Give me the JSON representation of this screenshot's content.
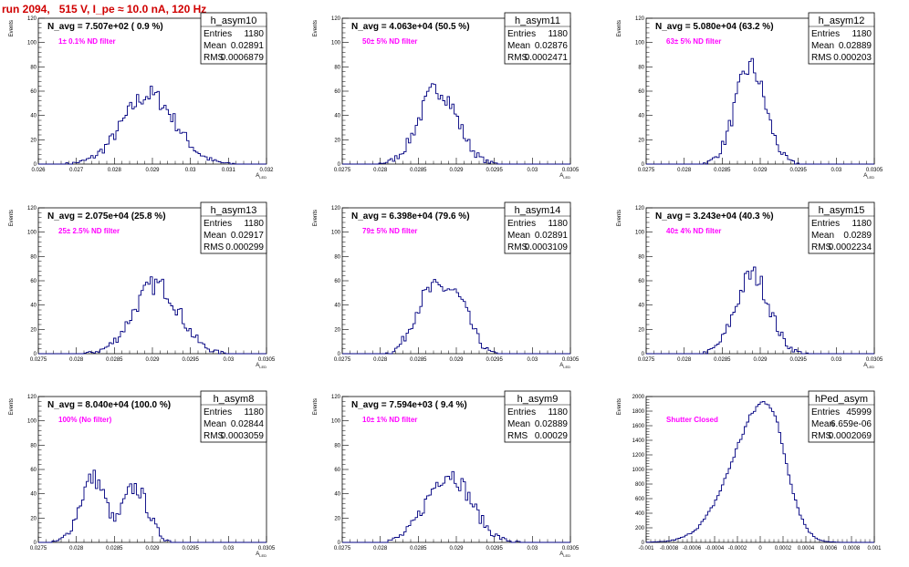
{
  "title": "run 2094,   515 V, I_pe ≈ 10.0 nA, 120 Hz",
  "colors": {
    "title": "#d00000",
    "hist": "#000080",
    "filter_note": "#ff00ff"
  },
  "chart_data": [
    {
      "type": "histogram",
      "name": "h_asym10",
      "entries": "1180",
      "mean": "0.02891",
      "rms": "0.0006879",
      "annotation": "N_avg = 7.507e+02 ( 0.9 %)",
      "filter": "1± 0.1% ND filter",
      "ylabel": "Events",
      "xlabel": "A_LED",
      "xlim": [
        0.026,
        0.032
      ],
      "ylim": [
        0,
        120
      ],
      "xticks": [
        "0.026",
        "0.027",
        "0.028",
        "0.029",
        "0.03",
        "0.031",
        "0.032"
      ],
      "yticks": [
        "0",
        "20",
        "40",
        "60",
        "80",
        "100",
        "120"
      ],
      "peak_x": 0.02891,
      "peak_y": 57,
      "width": 0.00069,
      "shape": "wide"
    },
    {
      "type": "histogram",
      "name": "h_asym11",
      "entries": "1180",
      "mean": "0.02876",
      "rms": "0.0002471",
      "annotation": "N_avg = 4.063e+04 (50.5 %)",
      "filter": "50± 5% ND filter",
      "ylabel": "Events",
      "xlabel": "A_LED",
      "xlim": [
        0.0275,
        0.0305
      ],
      "ylim": [
        0,
        120
      ],
      "xticks": [
        "0.0275",
        "0.028",
        "0.0285",
        "0.029",
        "0.0295",
        "0.03",
        "0.0305"
      ],
      "yticks": [
        "0",
        "20",
        "40",
        "60",
        "80",
        "100",
        "120"
      ],
      "peak_x": 0.02876,
      "peak_y": 62,
      "width": 0.00025,
      "shape": "normal"
    },
    {
      "type": "histogram",
      "name": "h_asym12",
      "entries": "1180",
      "mean": "0.02889",
      "rms": "0.000203",
      "annotation": "N_avg = 5.080e+04 (63.2 %)",
      "filter": "63± 5% ND filter",
      "ylabel": "Events",
      "xlabel": "A_LED",
      "xlim": [
        0.0275,
        0.0305
      ],
      "ylim": [
        0,
        120
      ],
      "xticks": [
        "0.0275",
        "0.028",
        "0.0285",
        "0.029",
        "0.0295",
        "0.03",
        "0.0305"
      ],
      "yticks": [
        "0",
        "20",
        "40",
        "60",
        "80",
        "100",
        "120"
      ],
      "peak_x": 0.02887,
      "peak_y": 80,
      "width": 0.0002,
      "shape": "normal"
    },
    {
      "type": "histogram",
      "name": "h_asym13",
      "entries": "1180",
      "mean": "0.02917",
      "rms": "0.000299",
      "annotation": "N_avg = 2.075e+04 (25.8 %)",
      "filter": "25± 2.5% ND filter",
      "ylabel": "Events",
      "xlabel": "A_LED",
      "xlim": [
        0.0275,
        0.0305
      ],
      "ylim": [
        0,
        120
      ],
      "xticks": [
        "0.0275",
        "0.028",
        "0.0285",
        "0.029",
        "0.0295",
        "0.03",
        "0.0305"
      ],
      "yticks": [
        "0",
        "20",
        "40",
        "60",
        "80",
        "100",
        "120"
      ],
      "peak_x": 0.02905,
      "peak_y": 57,
      "width": 0.0003,
      "shape": "normal"
    },
    {
      "type": "histogram",
      "name": "h_asym14",
      "entries": "1180",
      "mean": "0.02891",
      "rms": "0.0003109",
      "annotation": "N_avg = 6.398e+04 (79.6 %)",
      "filter": "79± 5% ND filter",
      "ylabel": "Events",
      "xlabel": "A_LED",
      "xlim": [
        0.0275,
        0.0305
      ],
      "ylim": [
        0,
        120
      ],
      "xticks": [
        "0.0275",
        "0.028",
        "0.0285",
        "0.029",
        "0.0295",
        "0.03",
        "0.0305"
      ],
      "yticks": [
        "0",
        "20",
        "40",
        "60",
        "80",
        "100",
        "120"
      ],
      "peak_x": 0.0288,
      "peak_y": 54,
      "width": 0.00031,
      "shape": "flat"
    },
    {
      "type": "histogram",
      "name": "h_asym15",
      "entries": "1180",
      "mean": "0.0289",
      "rms": "0.0002234",
      "annotation": "N_avg = 3.243e+04 (40.3 %)",
      "filter": "40± 4% ND filter",
      "ylabel": "Events",
      "xlabel": "A_LED",
      "xlim": [
        0.0275,
        0.0305
      ],
      "ylim": [
        0,
        120
      ],
      "xticks": [
        "0.0275",
        "0.028",
        "0.0285",
        "0.029",
        "0.0295",
        "0.03",
        "0.0305"
      ],
      "yticks": [
        "0",
        "20",
        "40",
        "60",
        "80",
        "100",
        "120"
      ],
      "peak_x": 0.0289,
      "peak_y": 65,
      "width": 0.00022,
      "shape": "normal"
    },
    {
      "type": "histogram",
      "name": "h_asym8",
      "entries": "1180",
      "mean": "0.02844",
      "rms": "0.0003059",
      "annotation": "N_avg = 8.040e+04 (100.0 %)",
      "filter": "100% (No filter)",
      "ylabel": "Events",
      "xlabel": "A_LED",
      "xlim": [
        0.0275,
        0.0305
      ],
      "ylim": [
        0,
        120
      ],
      "xticks": [
        "0.0275",
        "0.028",
        "0.0285",
        "0.029",
        "0.0295",
        "0.03",
        "0.0305"
      ],
      "yticks": [
        "0",
        "20",
        "40",
        "60",
        "80",
        "100",
        "120"
      ],
      "peak_x": 0.02835,
      "peak_y": 53,
      "width": 0.00031,
      "shape": "bimodal"
    },
    {
      "type": "histogram",
      "name": "h_asym9",
      "entries": "1180",
      "mean": "0.02889",
      "rms": "0.00029",
      "annotation": "N_avg = 7.594e+03 ( 9.4 %)",
      "filter": "10± 1% ND filter",
      "ylabel": "Events",
      "xlabel": "A_LED",
      "xlim": [
        0.0275,
        0.0305
      ],
      "ylim": [
        0,
        120
      ],
      "xticks": [
        "0.0275",
        "0.028",
        "0.0285",
        "0.029",
        "0.0295",
        "0.03",
        "0.0305"
      ],
      "yticks": [
        "0",
        "20",
        "40",
        "60",
        "80",
        "100",
        "120"
      ],
      "peak_x": 0.0289,
      "peak_y": 57,
      "width": 0.00029,
      "shape": "normal"
    },
    {
      "type": "histogram",
      "name": "hPed_asym",
      "entries": "45999",
      "mean": "6.659e-06",
      "rms": "0.0002069",
      "annotation": "",
      "filter": "Shutter Closed",
      "ylabel": "Events",
      "xlabel": "",
      "xlim": [
        -0.001,
        0.001
      ],
      "ylim": [
        0,
        2000
      ],
      "xticks": [
        "-0.001",
        "-0.0008",
        "-0.0006",
        "-0.0004",
        "-0.0002",
        "0",
        "0.0002",
        "0.0004",
        "0.0006",
        "0.0008",
        "0.001"
      ],
      "yticks": [
        "0",
        "200",
        "400",
        "600",
        "800",
        "1000",
        "1200",
        "1400",
        "1600",
        "1800",
        "2000"
      ],
      "peak_x": 5e-05,
      "peak_y": 1930,
      "width": 0.00021,
      "shape": "skewed"
    }
  ]
}
